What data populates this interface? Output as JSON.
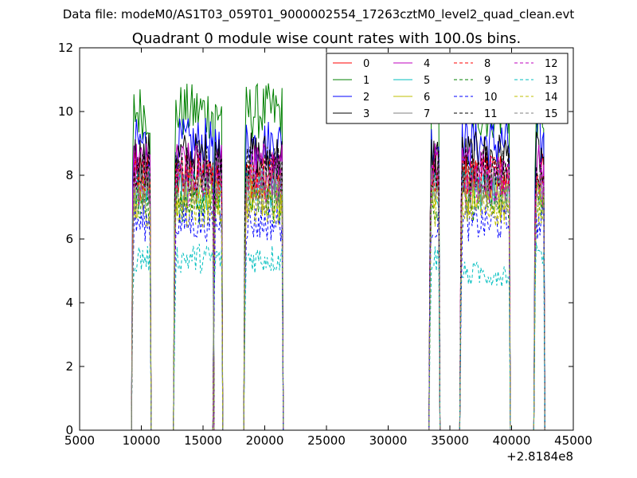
{
  "page": {
    "suptitle": "Data file: modeM0/AS1T03_059T01_9000002554_17263cztM0_level2_quad_clean.evt"
  },
  "chart_data": {
    "type": "line",
    "title": "Quadrant 0 module wise count rates with 100.0s bins.",
    "xlabel": "",
    "ylabel": "",
    "xlim": [
      5000,
      45000
    ],
    "ylim": [
      0,
      12
    ],
    "x_ticks": [
      5000,
      10000,
      15000,
      20000,
      25000,
      30000,
      35000,
      40000,
      45000
    ],
    "y_ticks": [
      0,
      2,
      4,
      6,
      8,
      10,
      12
    ],
    "x_offset_label": "+2.8184e8",
    "grid": false,
    "legend_position": "top-right",
    "legend_columns": 4,
    "segments": [
      {
        "start": 9300,
        "end": 10700
      },
      {
        "start": 12700,
        "end": 15800
      },
      {
        "start": 15900,
        "end": 16500
      },
      {
        "start": 18400,
        "end": 21400
      },
      {
        "start": 33400,
        "end": 34100
      },
      {
        "start": 35900,
        "end": 39800
      },
      {
        "start": 41900,
        "end": 42600
      }
    ],
    "series": [
      {
        "name": "0",
        "color": "#ff0000",
        "dash": "solid",
        "level": 8.0
      },
      {
        "name": "1",
        "color": "#008000",
        "dash": "solid",
        "level": 10.0
      },
      {
        "name": "2",
        "color": "#0000ff",
        "dash": "solid",
        "level": 9.0
      },
      {
        "name": "3",
        "color": "#000000",
        "dash": "solid",
        "level": 8.6
      },
      {
        "name": "4",
        "color": "#bf00bf",
        "dash": "solid",
        "level": 8.3
      },
      {
        "name": "5",
        "color": "#00bfbf",
        "dash": "solid",
        "level": 7.6
      },
      {
        "name": "6",
        "color": "#bfbf00",
        "dash": "solid",
        "level": 7.3
      },
      {
        "name": "7",
        "color": "#808080",
        "dash": "solid",
        "level": 7.8
      },
      {
        "name": "8",
        "color": "#ff0000",
        "dash": "dashed",
        "level": 7.9
      },
      {
        "name": "9",
        "color": "#008000",
        "dash": "dashed",
        "level": 7.1
      },
      {
        "name": "10",
        "color": "#0000ff",
        "dash": "dashed",
        "level": 6.5
      },
      {
        "name": "11",
        "color": "#000000",
        "dash": "dashed",
        "level": 8.2
      },
      {
        "name": "12",
        "color": "#bf00bf",
        "dash": "dashed",
        "level": 7.7
      },
      {
        "name": "13",
        "color": "#00bfbf",
        "dash": "dashed",
        "level": 5.4
      },
      {
        "name": "14",
        "color": "#bfbf00",
        "dash": "dashed",
        "level": 7.0
      },
      {
        "name": "15",
        "color": "#808080",
        "dash": "dashed",
        "level": 7.4
      }
    ]
  }
}
